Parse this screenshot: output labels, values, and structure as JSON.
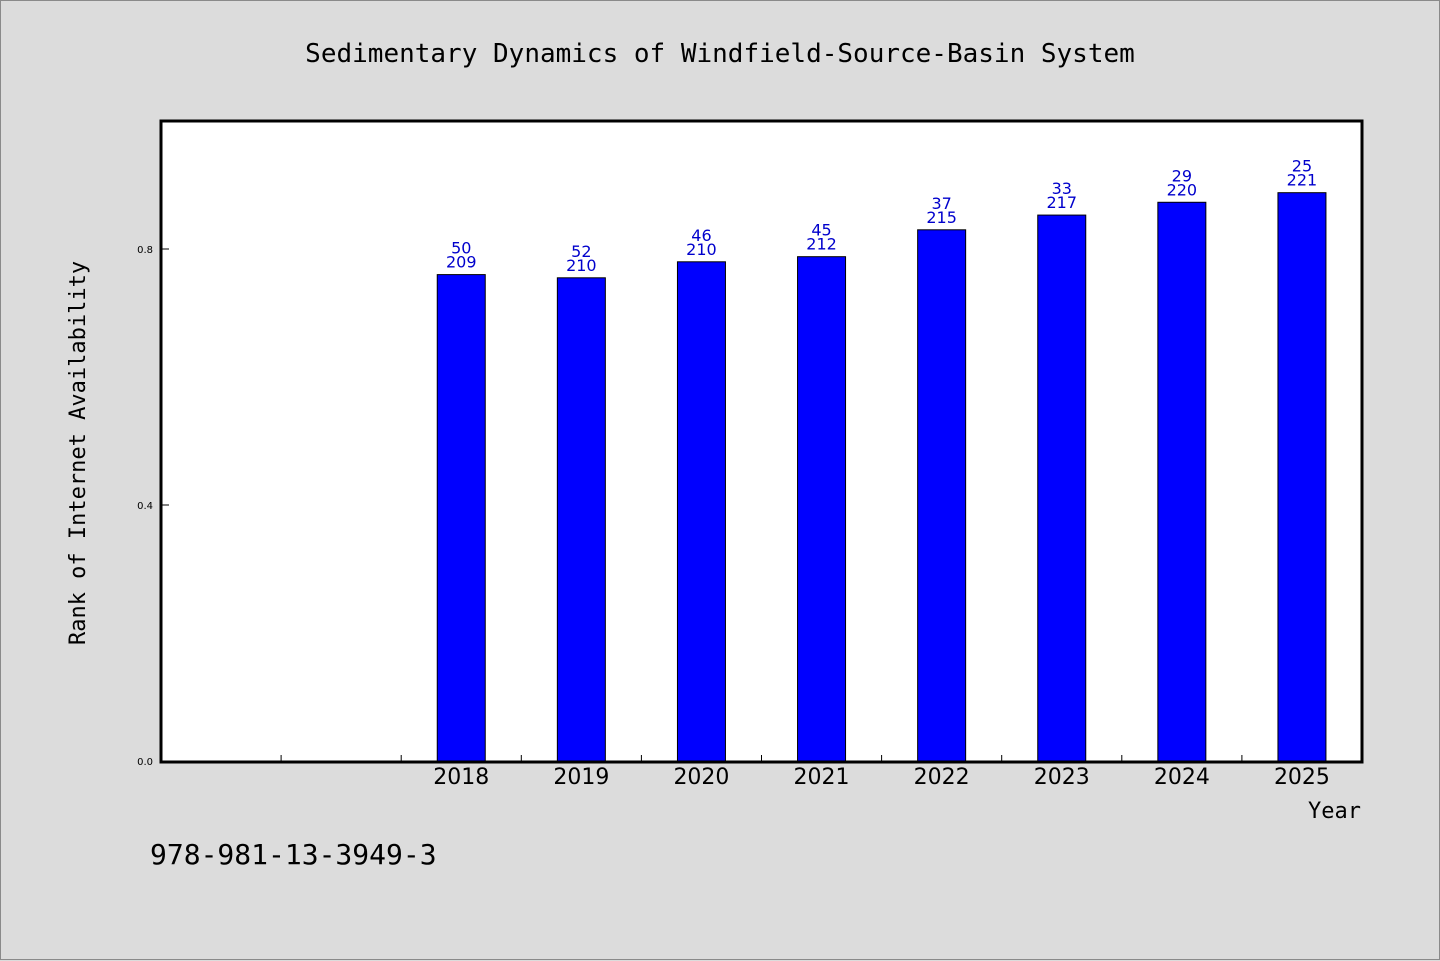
{
  "colors": {
    "background": "#dcdcdc",
    "plot_background": "#ffffff",
    "bar": "#0000ff",
    "bar_edge": "#000000",
    "data_label": "#0000cc"
  },
  "footer": {
    "isbn": "978-981-13-3949-3"
  },
  "chart_data": {
    "type": "bar",
    "title": "Sedimentary Dynamics of Windfield-Source-Basin System",
    "xlabel": "Year",
    "ylabel": "Rank of Internet Availability",
    "categories": [
      "",
      "",
      "2018",
      "2019",
      "2020",
      "2021",
      "2022",
      "2023",
      "2024",
      "2025"
    ],
    "values": [
      null,
      null,
      0.76,
      0.755,
      0.78,
      0.788,
      0.83,
      0.853,
      0.873,
      0.888
    ],
    "labels_top": [
      "",
      "",
      "50",
      "52",
      "46",
      "45",
      "37",
      "33",
      "29",
      "25"
    ],
    "labels_bottom": [
      "",
      "",
      "209",
      "210",
      "210",
      "212",
      "215",
      "217",
      "220",
      "221"
    ],
    "yticks": [
      0.0,
      0.4,
      0.8
    ],
    "ytick_labels": [
      "0.0",
      "0.4",
      "0.8"
    ],
    "ylim": [
      0,
      1.0
    ],
    "grid": false,
    "legend": "none"
  }
}
